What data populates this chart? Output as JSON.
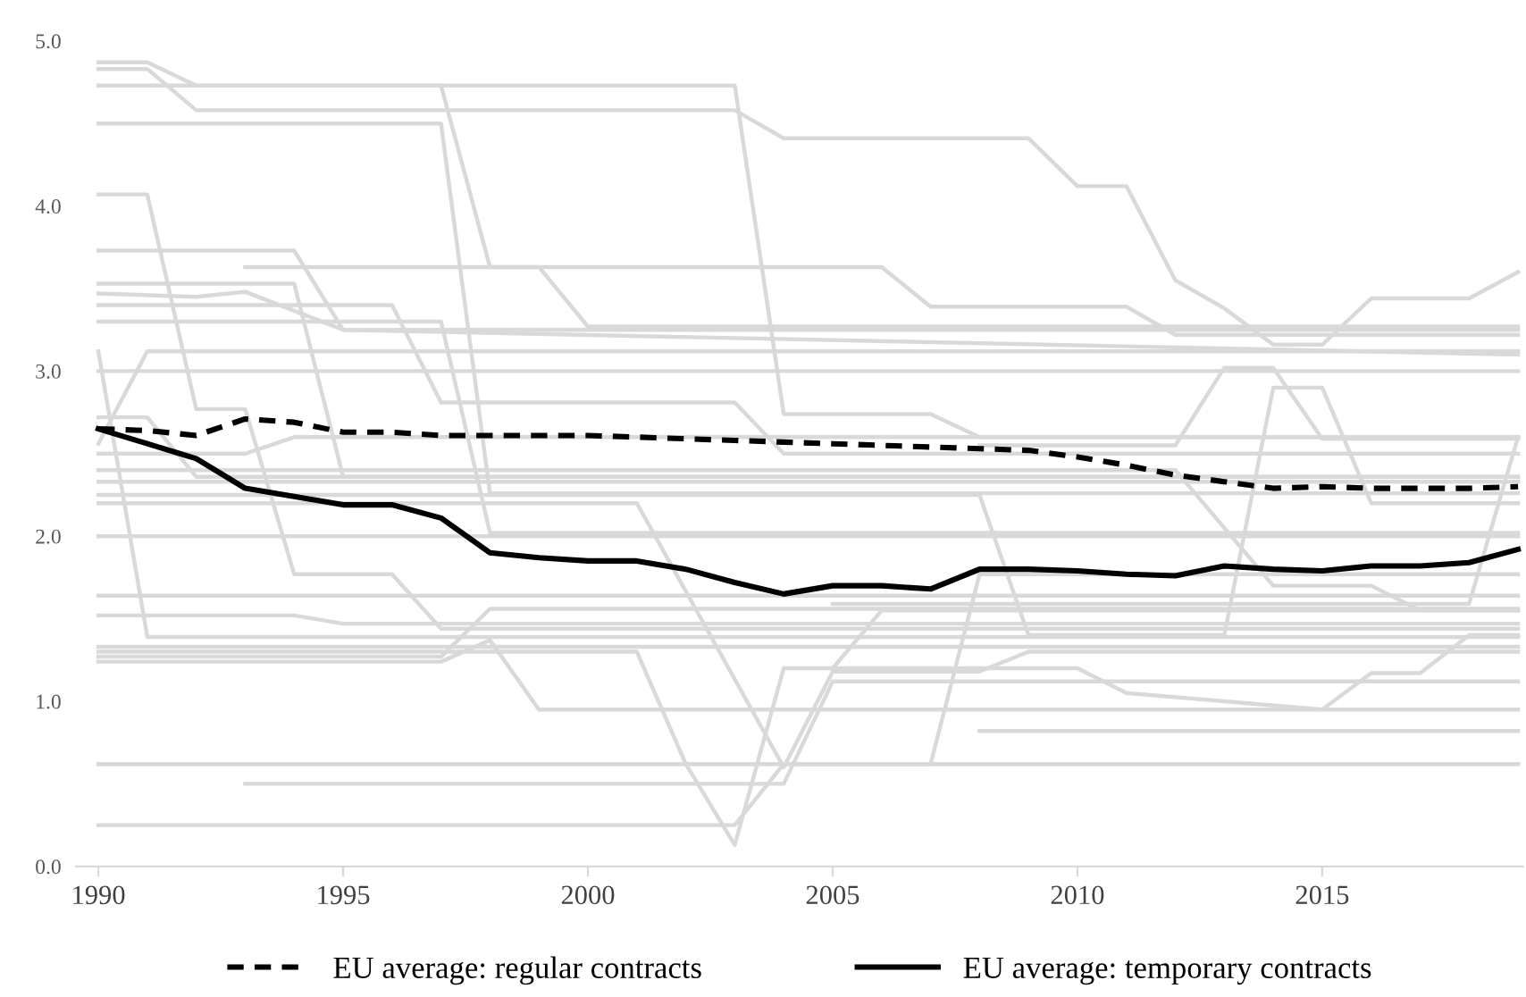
{
  "chart_data": {
    "type": "line",
    "xlim": [
      1989.55,
      2019.1
    ],
    "ylim": [
      0,
      5
    ],
    "xticks": [
      1990,
      1995,
      2000,
      2005,
      2010,
      2015
    ],
    "yticks": [
      {
        "value": 0,
        "label": "0.0"
      },
      {
        "value": 1,
        "label": "1.0"
      },
      {
        "value": 2,
        "label": "2.0"
      },
      {
        "value": 3,
        "label": "3.0"
      },
      {
        "value": 4,
        "label": "4.0"
      },
      {
        "value": 5,
        "label": "5.0"
      }
    ],
    "grid": false,
    "legend": "bottom",
    "series": [
      {
        "color": "#d9d9d9",
        "x": [
          1990,
          1991,
          1992,
          2003,
          2004,
          2007,
          2008,
          2019
        ],
        "values": [
          4.87,
          4.87,
          4.73,
          4.73,
          2.74,
          2.74,
          2.6,
          2.6
        ]
      },
      {
        "color": "#d9d9d9",
        "x": [
          1990,
          1991,
          1992,
          2003,
          2004,
          2009,
          2010,
          2011,
          2012,
          2013,
          2014,
          2015,
          2016,
          2018,
          2019
        ],
        "values": [
          4.83,
          4.83,
          4.58,
          4.58,
          4.41,
          4.41,
          4.12,
          4.12,
          3.55,
          3.38,
          3.16,
          3.16,
          3.44,
          3.44,
          3.6
        ]
      },
      {
        "color": "#d9d9d9",
        "x": [
          1990,
          1997,
          1998,
          1999,
          2000,
          2019
        ],
        "values": [
          4.73,
          4.73,
          3.63,
          3.63,
          3.27,
          3.27
        ]
      },
      {
        "color": "#d9d9d9",
        "x": [
          1990,
          1997,
          1998,
          2019
        ],
        "values": [
          4.5,
          4.5,
          2.26,
          2.26
        ]
      },
      {
        "color": "#d9d9d9",
        "x": [
          1990,
          1991,
          1992,
          1993,
          1994,
          1996,
          1997,
          2019
        ],
        "values": [
          4.07,
          4.07,
          2.77,
          2.77,
          1.77,
          1.77,
          1.44,
          1.44
        ]
      },
      {
        "color": "#d9d9d9",
        "x": [
          1990,
          1994,
          1995,
          2019
        ],
        "values": [
          3.73,
          3.73,
          3.25,
          3.25
        ]
      },
      {
        "color": "#d9d9d9",
        "x": [
          1993,
          2006,
          2007,
          2011,
          2012,
          2019
        ],
        "values": [
          3.63,
          3.63,
          3.39,
          3.39,
          3.22,
          3.22
        ]
      },
      {
        "color": "#d9d9d9",
        "x": [
          1990,
          1994,
          1995,
          2019
        ],
        "values": [
          3.53,
          3.53,
          2.36,
          2.36
        ]
      },
      {
        "color": "#d9d9d9",
        "x": [
          1990,
          1992,
          1993,
          1995,
          2019
        ],
        "values": [
          3.47,
          3.45,
          3.48,
          3.25,
          3.1
        ]
      },
      {
        "color": "#d9d9d9",
        "x": [
          1990,
          1996,
          1997,
          2003,
          2004,
          2019
        ],
        "values": [
          3.4,
          3.4,
          2.81,
          2.81,
          2.5,
          2.5
        ]
      },
      {
        "color": "#d9d9d9",
        "x": [
          1990,
          1997,
          1998,
          2019
        ],
        "values": [
          3.3,
          3.3,
          2.02,
          2.02
        ]
      },
      {
        "color": "#d9d9d9",
        "x": [
          1990,
          1991,
          2019
        ],
        "values": [
          3.12,
          1.39,
          1.39
        ]
      },
      {
        "color": "#d9d9d9",
        "x": [
          1990,
          1991,
          2019
        ],
        "values": [
          2.56,
          3.12,
          3.12
        ]
      },
      {
        "color": "#d9d9d9",
        "x": [
          1990,
          2019
        ],
        "values": [
          3.0,
          3.0
        ]
      },
      {
        "color": "#d9d9d9",
        "x": [
          1990,
          1991,
          1992,
          2019
        ],
        "values": [
          2.72,
          2.72,
          2.36,
          2.36
        ]
      },
      {
        "color": "#d9d9d9",
        "x": [
          1990,
          1993,
          1994,
          2019
        ],
        "values": [
          2.5,
          2.5,
          2.6,
          2.6
        ]
      },
      {
        "color": "#d9d9d9",
        "x": [
          1990,
          2019
        ],
        "values": [
          2.33,
          2.33
        ]
      },
      {
        "color": "#d9d9d9",
        "x": [
          1990,
          2019
        ],
        "values": [
          2.0,
          2.0
        ]
      },
      {
        "color": "#d9d9d9",
        "x": [
          1990,
          2019
        ],
        "values": [
          1.64,
          1.64
        ]
      },
      {
        "color": "#d9d9d9",
        "x": [
          1990,
          1994,
          1995,
          2019
        ],
        "values": [
          1.52,
          1.52,
          1.47,
          1.47
        ]
      },
      {
        "color": "#d9d9d9",
        "x": [
          1990,
          2019
        ],
        "values": [
          1.33,
          1.33
        ]
      },
      {
        "color": "#d9d9d9",
        "x": [
          1990,
          1997,
          1998,
          2019
        ],
        "values": [
          1.27,
          1.27,
          1.56,
          1.56
        ]
      },
      {
        "color": "#d9d9d9",
        "x": [
          1990,
          1997,
          1998,
          1999,
          2019
        ],
        "values": [
          1.24,
          1.24,
          1.37,
          0.95,
          0.95
        ]
      },
      {
        "color": "#d9d9d9",
        "x": [
          1990,
          2007,
          2008,
          2019
        ],
        "values": [
          0.62,
          0.62,
          1.77,
          1.77
        ]
      },
      {
        "color": "#d9d9d9",
        "x": [
          1990,
          2019
        ],
        "values": [
          0.62,
          0.62
        ]
      },
      {
        "color": "#d9d9d9",
        "x": [
          1993,
          2004,
          2005,
          2019
        ],
        "values": [
          0.5,
          0.5,
          1.12,
          1.12
        ]
      },
      {
        "color": "#d9d9d9",
        "x": [
          1990,
          2003,
          2004,
          2019
        ],
        "values": [
          0.25,
          0.25,
          0.62,
          0.62
        ]
      },
      {
        "color": "#d9d9d9",
        "x": [
          1990,
          2001,
          2002,
          2003,
          2004,
          2005,
          2006,
          2019
        ],
        "values": [
          1.3,
          1.3,
          0.62,
          0.13,
          1.2,
          1.2,
          1.55,
          1.55
        ]
      },
      {
        "color": "#d9d9d9",
        "x": [
          1990,
          2001,
          2004,
          2005,
          2008,
          2009,
          2019
        ],
        "values": [
          2.2,
          2.2,
          0.6,
          1.18,
          1.18,
          1.3,
          1.3
        ]
      },
      {
        "color": "#d9d9d9",
        "x": [
          2008,
          2019
        ],
        "values": [
          0.82,
          0.82
        ]
      },
      {
        "color": "#d9d9d9",
        "x": [
          2005,
          2010,
          2011,
          2015,
          2016,
          2017,
          2018,
          2019
        ],
        "values": [
          1.2,
          1.2,
          1.05,
          0.95,
          1.17,
          1.17,
          1.4,
          1.4
        ]
      },
      {
        "color": "#d9d9d9",
        "x": [
          2008,
          2012,
          2013,
          2014,
          2015,
          2019
        ],
        "values": [
          2.55,
          2.55,
          3.02,
          3.02,
          2.59,
          2.59
        ]
      },
      {
        "color": "#d9d9d9",
        "x": [
          1990,
          2008,
          2009,
          2013,
          2014,
          2015,
          2016,
          2019
        ],
        "values": [
          2.25,
          2.25,
          1.4,
          1.4,
          2.9,
          2.9,
          2.2,
          2.2
        ]
      },
      {
        "color": "#d9d9d9",
        "x": [
          1990,
          2012,
          2014,
          2016,
          2017,
          2019
        ],
        "values": [
          2.4,
          2.4,
          1.7,
          1.7,
          1.55,
          1.55
        ]
      },
      {
        "color": "#d9d9d9",
        "x": [
          2005,
          2018,
          2019
        ],
        "values": [
          1.59,
          1.59,
          2.6
        ]
      },
      {
        "name": "EU average: regular contracts",
        "color": "#000000",
        "line_style": "dashed",
        "x": [
          1990,
          1991,
          1992,
          1993,
          1994,
          1995,
          1996,
          1997,
          1998,
          1999,
          2000,
          2001,
          2002,
          2003,
          2004,
          2005,
          2006,
          2007,
          2008,
          2009,
          2010,
          2011,
          2012,
          2013,
          2014,
          2015,
          2016,
          2017,
          2018,
          2019
        ],
        "values": [
          2.65,
          2.64,
          2.61,
          2.71,
          2.69,
          2.63,
          2.63,
          2.61,
          2.61,
          2.61,
          2.61,
          2.6,
          2.59,
          2.58,
          2.57,
          2.56,
          2.55,
          2.54,
          2.53,
          2.52,
          2.48,
          2.43,
          2.37,
          2.33,
          2.29,
          2.3,
          2.29,
          2.29,
          2.29,
          2.3
        ]
      },
      {
        "name": "EU average: temporary contracts",
        "color": "#000000",
        "line_style": "solid",
        "x": [
          1990,
          1991,
          1992,
          1993,
          1994,
          1995,
          1996,
          1997,
          1998,
          1999,
          2000,
          2001,
          2002,
          2003,
          2004,
          2005,
          2006,
          2007,
          2008,
          2009,
          2010,
          2011,
          2012,
          2013,
          2014,
          2015,
          2016,
          2017,
          2018,
          2019
        ],
        "values": [
          2.65,
          2.56,
          2.47,
          2.29,
          2.24,
          2.19,
          2.19,
          2.11,
          1.9,
          1.87,
          1.85,
          1.85,
          1.8,
          1.72,
          1.65,
          1.7,
          1.7,
          1.68,
          1.8,
          1.8,
          1.79,
          1.77,
          1.76,
          1.82,
          1.8,
          1.79,
          1.82,
          1.82,
          1.84,
          1.92
        ]
      }
    ]
  }
}
